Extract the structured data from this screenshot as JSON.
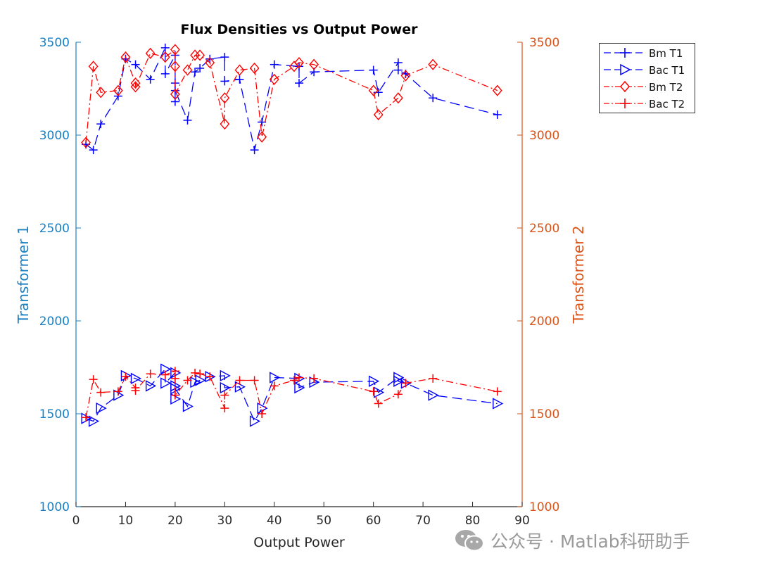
{
  "chart_data": {
    "type": "line",
    "title": "Flux Densities vs Output Power",
    "xlabel": "Output Power",
    "ylabel_left": "Transformer 1",
    "ylabel_right": "Transformer 2",
    "xlim": [
      0,
      90
    ],
    "ylim_left": [
      1000,
      3500
    ],
    "ylim_right": [
      1000,
      3500
    ],
    "x_ticks": [
      "0",
      "10",
      "20",
      "30",
      "40",
      "50",
      "60",
      "70",
      "80",
      "90"
    ],
    "y_ticks_left": [
      "1000",
      "1500",
      "2000",
      "2500",
      "3000",
      "3500"
    ],
    "y_ticks_right": [
      "1000",
      "1500",
      "2000",
      "2500",
      "3000",
      "3500"
    ],
    "legend_position": "outside-top-right",
    "colors": {
      "t1": "#0000ff",
      "t2": "#ff0000",
      "left_axis": "#1a7fc1",
      "right_axis": "#d95319"
    },
    "series": [
      {
        "name": "Bm T1",
        "axis": "left",
        "color": "#0000ff",
        "line": "dashed",
        "marker": "plus",
        "x": [
          2,
          3.5,
          5,
          8.5,
          10,
          12,
          15,
          18,
          18,
          20,
          20,
          20,
          20,
          22.5,
          24,
          25,
          27,
          30,
          30,
          33,
          36,
          37.5,
          40,
          45,
          45,
          48,
          60,
          61,
          65,
          65,
          66.5,
          72,
          85
        ],
        "y": [
          2950,
          2920,
          3060,
          3210,
          3410,
          3380,
          3300,
          3470,
          3330,
          3430,
          3280,
          3180,
          3240,
          3080,
          3340,
          3360,
          3410,
          3420,
          3290,
          3300,
          2920,
          3070,
          3380,
          3370,
          3280,
          3340,
          3350,
          3230,
          3390,
          3350,
          3330,
          3200,
          3110
        ]
      },
      {
        "name": "Bac T1",
        "axis": "left",
        "color": "#0000ff",
        "line": "dashed",
        "marker": "triangle-right",
        "x": [
          2,
          3.5,
          5,
          8.5,
          10,
          12,
          15,
          18,
          18,
          20,
          20,
          20,
          20,
          22.5,
          24,
          25,
          27,
          30,
          30,
          33,
          36,
          37.5,
          40,
          45,
          45,
          48,
          60,
          61,
          65,
          65,
          66.5,
          72,
          85
        ],
        "y": [
          1475,
          1460,
          1530,
          1600,
          1705,
          1690,
          1650,
          1740,
          1665,
          1720,
          1650,
          1580,
          1635,
          1540,
          1670,
          1680,
          1700,
          1705,
          1640,
          1645,
          1460,
          1530,
          1695,
          1690,
          1640,
          1670,
          1675,
          1615,
          1695,
          1675,
          1665,
          1600,
          1555
        ]
      },
      {
        "name": "Bm T2",
        "axis": "right",
        "color": "#ff0000",
        "line": "dashdot",
        "marker": "diamond",
        "x": [
          2,
          3.5,
          5,
          8.5,
          10,
          12,
          12,
          15,
          18,
          20,
          20,
          20,
          22.5,
          24,
          25,
          27,
          30,
          30,
          33,
          36,
          37.5,
          40,
          44,
          45,
          48,
          60,
          61,
          65,
          66.5,
          72,
          85
        ],
        "y": [
          2960,
          3370,
          3230,
          3240,
          3420,
          3280,
          3260,
          3440,
          3420,
          3460,
          3370,
          3220,
          3350,
          3430,
          3430,
          3390,
          3060,
          3200,
          3350,
          3360,
          2990,
          3300,
          3370,
          3390,
          3380,
          3240,
          3110,
          3200,
          3320,
          3380,
          3240
        ]
      },
      {
        "name": "Bac T2",
        "axis": "right",
        "color": "#ff0000",
        "line": "dashdot",
        "marker": "plus",
        "x": [
          2,
          3.5,
          5,
          8.5,
          10,
          12,
          12,
          15,
          18,
          20,
          20,
          20,
          22.5,
          24,
          25,
          27,
          30,
          30,
          33,
          36,
          37.5,
          40,
          44,
          45,
          48,
          60,
          61,
          65,
          66.5,
          72,
          85
        ],
        "y": [
          1480,
          1685,
          1615,
          1620,
          1700,
          1640,
          1625,
          1715,
          1710,
          1730,
          1690,
          1600,
          1680,
          1720,
          1715,
          1700,
          1530,
          1600,
          1680,
          1680,
          1500,
          1650,
          1680,
          1695,
          1690,
          1620,
          1555,
          1605,
          1665,
          1690,
          1620
        ]
      }
    ]
  },
  "watermark": {
    "text": "公众号 · Matlab科研助手",
    "icon": "wechat-icon"
  }
}
